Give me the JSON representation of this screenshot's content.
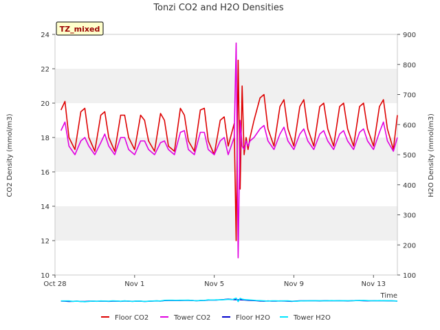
{
  "chart_data": {
    "type": "line",
    "title": "Tonzi CO2 and H2O Densities",
    "badge": "TZ_mixed",
    "xlabel": "Time",
    "ylabel_left": "CO2 Density (mmol/m3)",
    "ylabel_right": "H2O Density (mmol/m3)",
    "x_unit": "days since Oct 28",
    "xlim": [
      0,
      17.2
    ],
    "ylim_left": [
      10,
      24
    ],
    "ylim_right": [
      100,
      900
    ],
    "x_ticks": [
      {
        "value": 0,
        "label": "Oct 28"
      },
      {
        "value": 4,
        "label": "Nov 1"
      },
      {
        "value": 8,
        "label": "Nov 5"
      },
      {
        "value": 12,
        "label": "Nov 9"
      },
      {
        "value": 16,
        "label": "Nov 13"
      }
    ],
    "y_ticks_left": [
      "10",
      "12",
      "14",
      "16",
      "18",
      "20",
      "22",
      "24"
    ],
    "y_ticks_right": [
      "100",
      "200",
      "300",
      "400",
      "500",
      "600",
      "700",
      "800",
      "900"
    ],
    "grid": "horizontal bands",
    "legend_position": "bottom",
    "series": [
      {
        "name": "Floor CO2",
        "axis": "left",
        "color": "#dd0000",
        "x": [
          0.3,
          0.5,
          0.7,
          1.0,
          1.3,
          1.5,
          1.7,
          2.0,
          2.3,
          2.5,
          2.7,
          3.0,
          3.3,
          3.5,
          3.7,
          4.0,
          4.3,
          4.5,
          4.7,
          5.0,
          5.3,
          5.5,
          5.7,
          6.0,
          6.3,
          6.5,
          6.7,
          7.0,
          7.3,
          7.5,
          7.7,
          8.0,
          8.3,
          8.5,
          8.7,
          9.0,
          9.1,
          9.2,
          9.3,
          9.4,
          9.5,
          9.6,
          9.7,
          9.8,
          10.0,
          10.3,
          10.5,
          10.7,
          11.0,
          11.3,
          11.5,
          11.7,
          12.0,
          12.3,
          12.5,
          12.7,
          13.0,
          13.3,
          13.5,
          13.7,
          14.0,
          14.3,
          14.5,
          14.7,
          15.0,
          15.3,
          15.5,
          15.7,
          16.0,
          16.3,
          16.5,
          16.7,
          17.0,
          17.2
        ],
        "y": [
          19.6,
          20.1,
          18.0,
          17.3,
          19.5,
          19.7,
          18.0,
          17.2,
          19.3,
          19.5,
          18.0,
          17.2,
          19.3,
          19.3,
          18.0,
          17.3,
          19.3,
          19.0,
          17.8,
          17.2,
          19.4,
          19.0,
          17.5,
          17.2,
          19.7,
          19.3,
          17.8,
          17.2,
          19.6,
          19.7,
          17.8,
          17.0,
          19.0,
          19.2,
          17.5,
          18.8,
          12.0,
          22.5,
          15.0,
          21.0,
          17.0,
          18.0,
          17.3,
          18.0,
          19.0,
          20.3,
          20.5,
          18.5,
          17.5,
          19.8,
          20.2,
          18.5,
          17.5,
          19.8,
          20.2,
          18.5,
          17.5,
          19.8,
          20.0,
          18.5,
          17.5,
          19.8,
          20.0,
          18.5,
          17.5,
          19.8,
          20.0,
          18.5,
          17.5,
          19.8,
          20.2,
          18.5,
          17.3,
          19.3
        ]
      },
      {
        "name": "Tower CO2",
        "axis": "left",
        "color": "#e000e0",
        "x": [
          0.3,
          0.5,
          0.7,
          1.0,
          1.3,
          1.5,
          1.7,
          2.0,
          2.3,
          2.5,
          2.7,
          3.0,
          3.3,
          3.5,
          3.7,
          4.0,
          4.3,
          4.5,
          4.7,
          5.0,
          5.3,
          5.5,
          5.7,
          6.0,
          6.3,
          6.5,
          6.7,
          7.0,
          7.3,
          7.5,
          7.7,
          8.0,
          8.3,
          8.5,
          8.7,
          9.0,
          9.1,
          9.2,
          9.3,
          9.4,
          9.5,
          9.6,
          9.7,
          9.8,
          10.0,
          10.3,
          10.5,
          10.7,
          11.0,
          11.3,
          11.5,
          11.7,
          12.0,
          12.3,
          12.5,
          12.7,
          13.0,
          13.3,
          13.5,
          13.7,
          14.0,
          14.3,
          14.5,
          14.7,
          15.0,
          15.3,
          15.5,
          15.7,
          16.0,
          16.3,
          16.5,
          16.7,
          17.0,
          17.2
        ],
        "y": [
          18.4,
          18.9,
          17.5,
          17.0,
          17.8,
          18.0,
          17.5,
          17.0,
          17.7,
          18.2,
          17.5,
          17.0,
          18.0,
          18.0,
          17.3,
          17.0,
          17.8,
          17.8,
          17.3,
          17.0,
          17.7,
          17.8,
          17.3,
          17.0,
          18.3,
          18.4,
          17.3,
          17.0,
          18.3,
          18.3,
          17.3,
          17.0,
          17.8,
          18.0,
          17.0,
          18.0,
          23.5,
          11.0,
          19.0,
          17.5,
          17.3,
          17.8,
          17.5,
          17.8,
          18.0,
          18.5,
          18.7,
          17.8,
          17.3,
          18.2,
          18.6,
          17.8,
          17.3,
          18.2,
          18.5,
          17.8,
          17.3,
          18.2,
          18.4,
          17.8,
          17.3,
          18.2,
          18.4,
          17.8,
          17.3,
          18.3,
          18.5,
          17.8,
          17.3,
          18.3,
          18.9,
          17.8,
          17.2,
          18.0
        ]
      },
      {
        "name": "Floor H2O",
        "axis": "right",
        "color": "#0000cc",
        "x": [
          0.3,
          0.5,
          0.7,
          0.9,
          1.1,
          1.3,
          1.5,
          1.7,
          1.9,
          2.1,
          2.3,
          2.5,
          2.7,
          2.9,
          3.1,
          3.3,
          3.5,
          3.7,
          3.9,
          4.1,
          4.3,
          4.5,
          4.7,
          4.9,
          5.1,
          5.3,
          5.5,
          5.7,
          5.9,
          6.1,
          6.3,
          6.5,
          6.7,
          6.9,
          7.1,
          7.3,
          7.5,
          7.7,
          7.9,
          8.1,
          8.3,
          8.5,
          8.7,
          8.9,
          9.1,
          9.3,
          9.5,
          9.7,
          9.9,
          10.1,
          10.3,
          10.5,
          10.7,
          10.9,
          11.1,
          11.3,
          11.5,
          11.7,
          11.9,
          12.1,
          12.3,
          12.5,
          12.7,
          12.9,
          13.1,
          13.3,
          13.5,
          13.7,
          13.9,
          14.1,
          14.3,
          14.5,
          14.7,
          14.9,
          15.1,
          15.3,
          15.5,
          15.7,
          15.9,
          16.1,
          16.3,
          16.5,
          16.7,
          16.9,
          17.1,
          17.2
        ],
        "y": [
          13.3,
          12.8,
          12.0,
          12.5,
          13.0,
          12.2,
          11.8,
          12.8,
          13.2,
          12.6,
          13.2,
          13.0,
          12.4,
          13.0,
          13.3,
          12.5,
          13.6,
          13.0,
          12.4,
          13.3,
          12.8,
          12.0,
          12.6,
          13.4,
          13.8,
          13.4,
          15.0,
          15.3,
          15.3,
          15.2,
          15.3,
          15.5,
          15.6,
          15.2,
          14.3,
          15.0,
          15.3,
          16.5,
          16.5,
          16.8,
          17.5,
          18.5,
          20.0,
          18.5,
          18.0,
          17.5,
          17.0,
          16.0,
          15.2,
          14.8,
          13.6,
          13.0,
          13.8,
          13.4,
          13.2,
          13.8,
          13.6,
          12.8,
          12.4,
          13.3,
          14.0,
          14.0,
          14.2,
          14.4,
          14.4,
          13.8,
          14.4,
          14.8,
          14.3,
          14.4,
          14.7,
          14.4,
          13.9,
          14.6,
          14.9,
          14.9,
          14.6,
          14.1,
          14.3,
          14.6,
          14.2,
          14.4,
          14.1,
          14.0,
          13.6,
          13.1
        ]
      },
      {
        "name": "Tower H2O",
        "axis": "right",
        "color": "#00e5ff",
        "x": [
          0.3,
          0.5,
          0.7,
          0.9,
          1.1,
          1.3,
          1.5,
          1.7,
          1.9,
          2.1,
          2.3,
          2.5,
          2.7,
          2.9,
          3.1,
          3.3,
          3.5,
          3.7,
          3.9,
          4.1,
          4.3,
          4.5,
          4.7,
          4.9,
          5.1,
          5.3,
          5.5,
          5.7,
          5.9,
          6.1,
          6.3,
          6.5,
          6.7,
          6.9,
          7.1,
          7.3,
          7.5,
          7.7,
          7.9,
          8.1,
          8.3,
          8.5,
          8.7,
          8.9,
          9.0,
          9.1,
          9.2,
          9.3,
          9.4,
          9.5,
          9.6,
          9.7,
          9.9,
          10.1,
          10.3,
          10.5,
          10.7,
          10.9,
          11.1,
          11.3,
          11.5,
          11.7,
          11.9,
          12.1,
          12.3,
          12.5,
          12.7,
          12.9,
          13.1,
          13.3,
          13.5,
          13.7,
          13.9,
          14.1,
          14.3,
          14.5,
          14.7,
          14.9,
          15.1,
          15.3,
          15.5,
          15.7,
          15.9,
          16.1,
          16.3,
          16.5,
          16.7,
          16.9,
          17.1,
          17.2
        ],
        "y": [
          13.9,
          13.8,
          13.9,
          12.4,
          13.0,
          12.2,
          11.2,
          12.3,
          13.7,
          12.5,
          13.8,
          13.3,
          12.8,
          14.0,
          13.5,
          12.7,
          14.0,
          13.2,
          12.3,
          13.6,
          13.3,
          12.3,
          12.9,
          13.5,
          14.0,
          13.7,
          15.9,
          16.2,
          16.1,
          15.9,
          16.1,
          16.2,
          16.4,
          15.5,
          14.3,
          15.6,
          15.5,
          17.5,
          16.5,
          17.5,
          17.2,
          18.0,
          19.0,
          18.0,
          20.5,
          23.2,
          11.5,
          22.5,
          19.5,
          18.5,
          18.0,
          17.5,
          16.5,
          15.5,
          15.0,
          14.0,
          13.4,
          14.2,
          14.0,
          13.6,
          14.2,
          14.0,
          13.2,
          12.6,
          13.6,
          14.3,
          14.0,
          14.4,
          14.6,
          14.4,
          14.0,
          14.6,
          15.0,
          14.5,
          14.6,
          14.8,
          14.5,
          14.2,
          14.9,
          15.3,
          15.6,
          15.0,
          14.3,
          14.6,
          15.0,
          14.4,
          14.7,
          14.3,
          13.8,
          13.2
        ]
      }
    ]
  }
}
